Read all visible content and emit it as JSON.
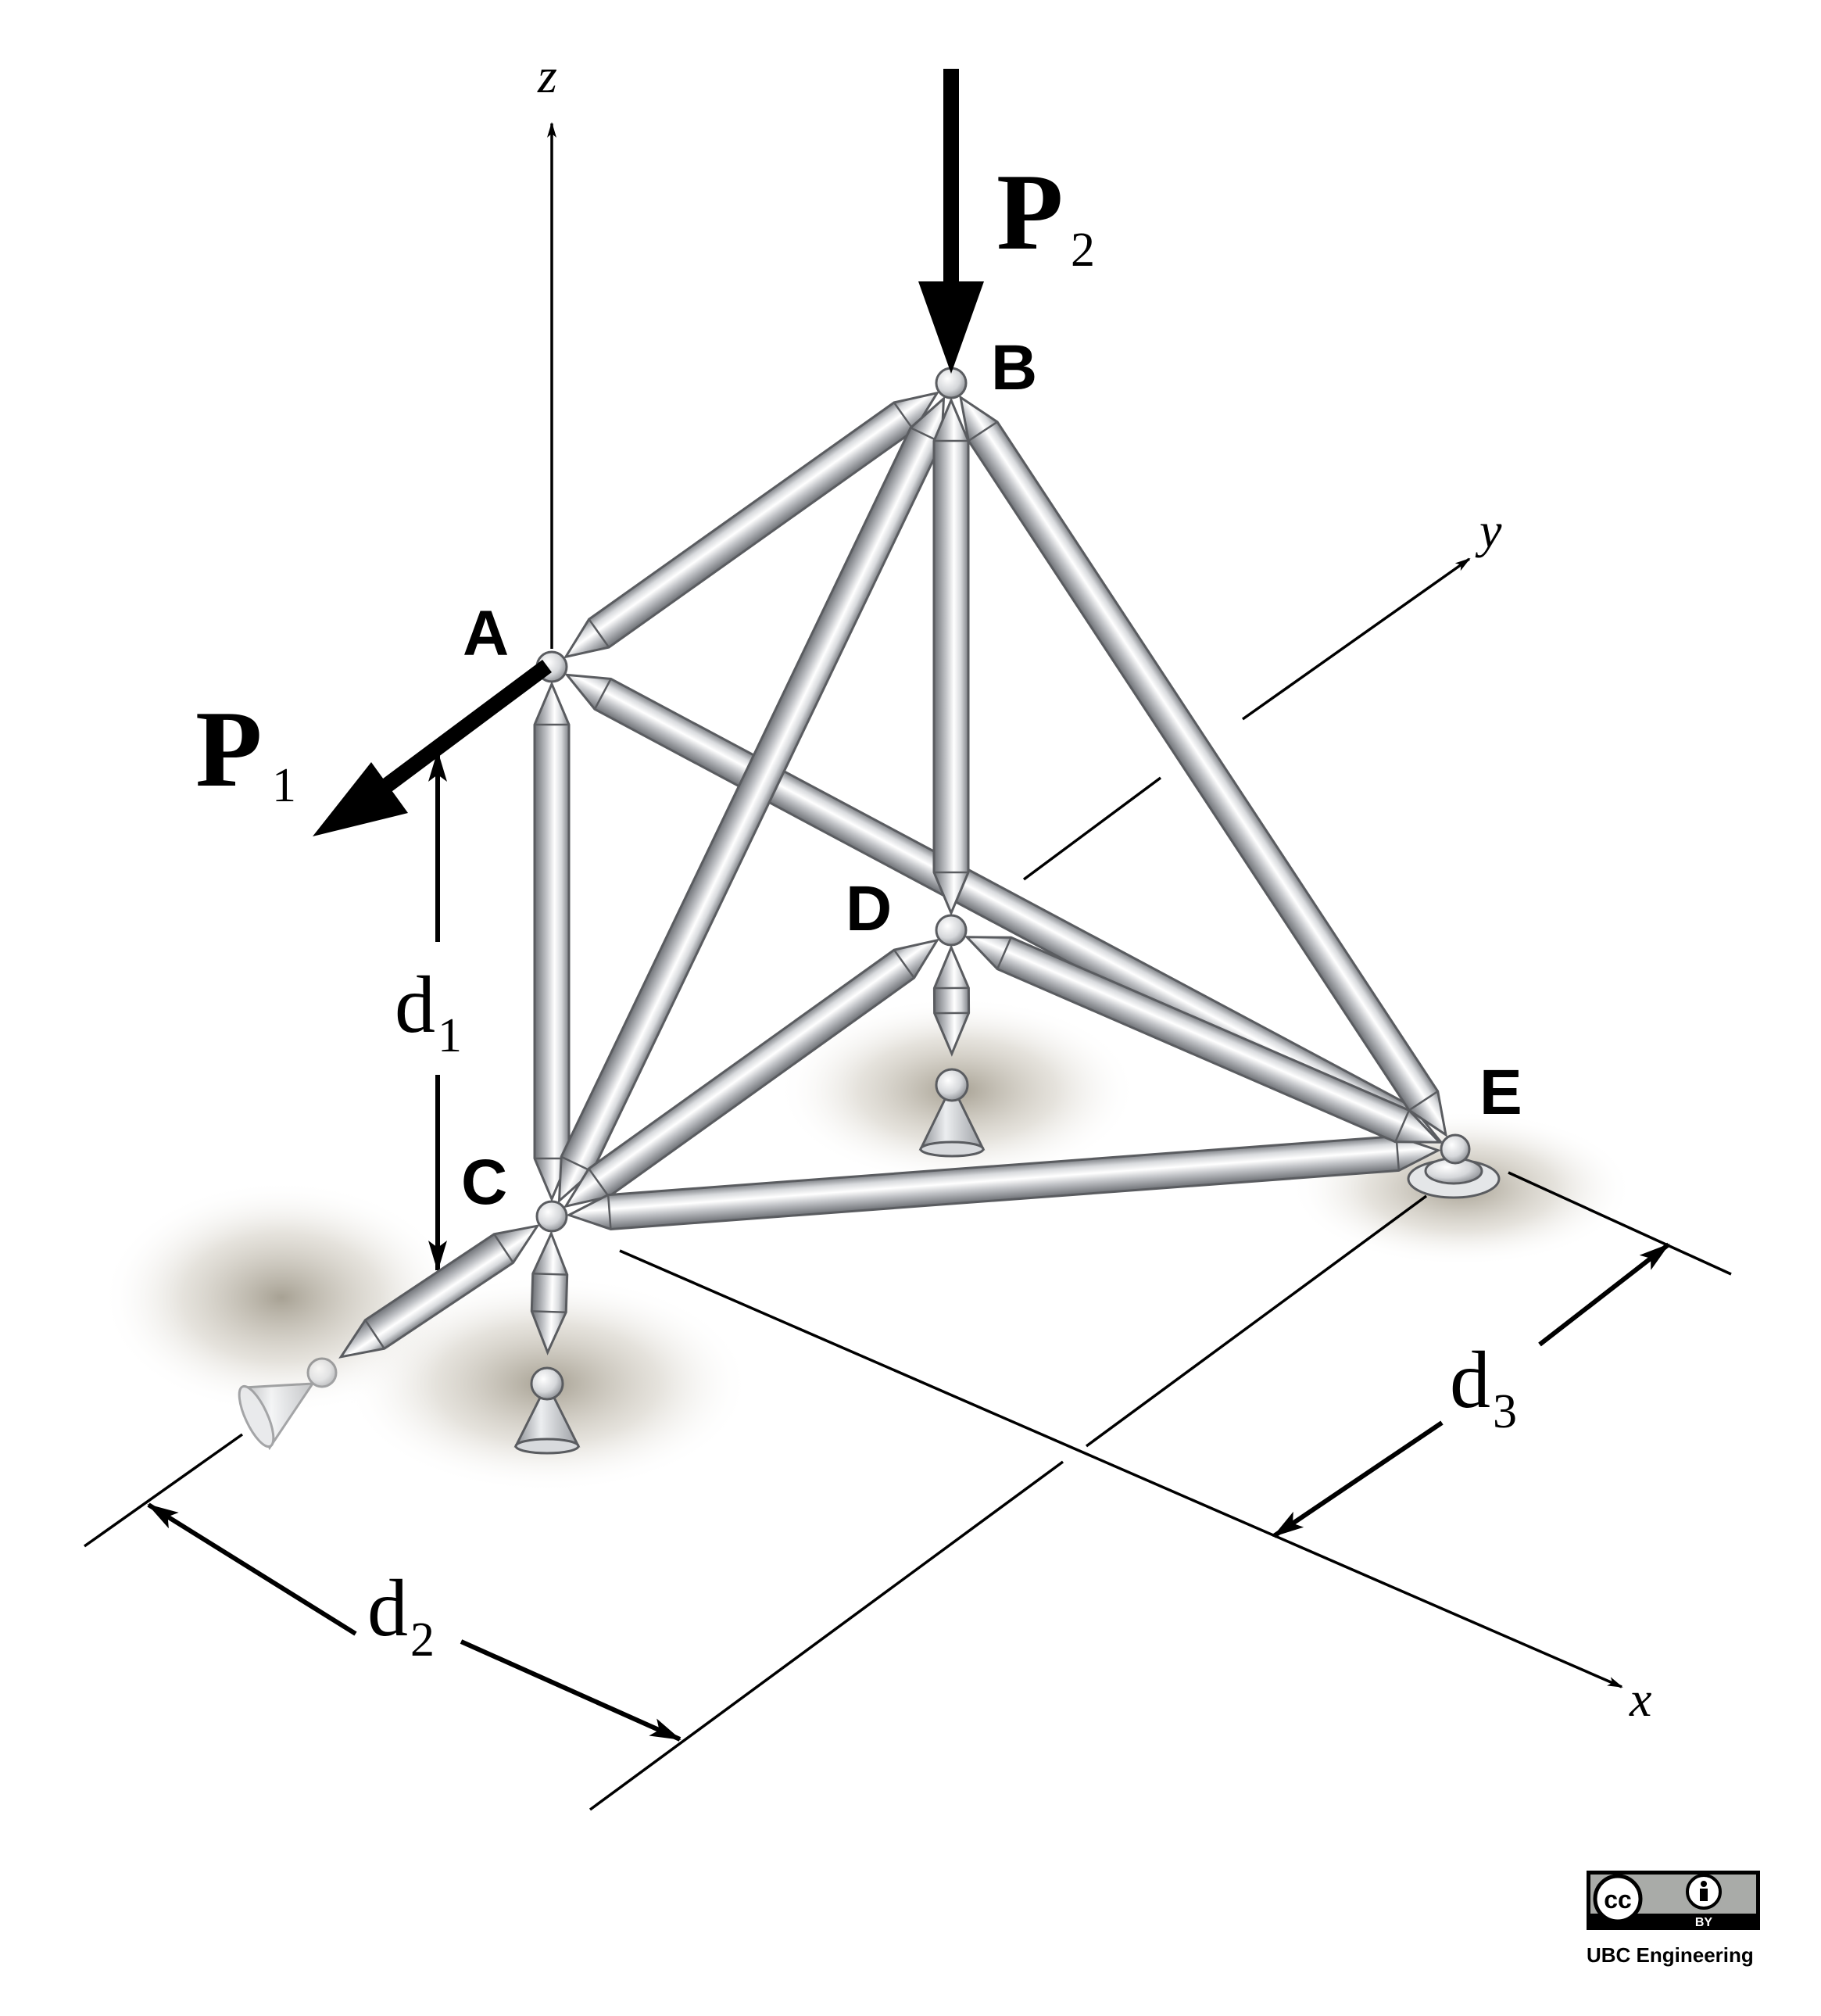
{
  "nodes": {
    "A": "A",
    "B": "B",
    "C": "C",
    "D": "D",
    "E": "E"
  },
  "axes": {
    "x": "x",
    "y": "y",
    "z": "z"
  },
  "forces": {
    "p1": {
      "letter": "P",
      "sub": "1"
    },
    "p2": {
      "letter": "P",
      "sub": "2"
    }
  },
  "dimensions": {
    "d1": {
      "letter": "d",
      "sub": "1"
    },
    "d2": {
      "letter": "d",
      "sub": "2"
    },
    "d3": {
      "letter": "d",
      "sub": "3"
    }
  },
  "license": {
    "cc": "cc",
    "by": "BY",
    "credit": "UBC Engineering"
  },
  "colors": {
    "member": "#c9cbce",
    "member_edge": "#5a5c60",
    "ink": "#000000"
  }
}
